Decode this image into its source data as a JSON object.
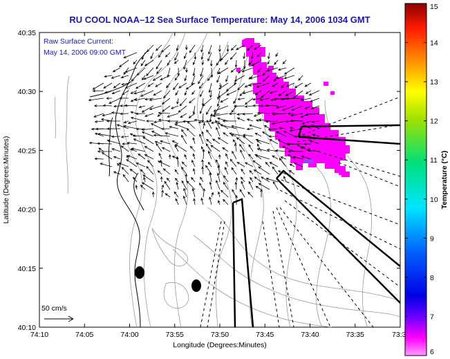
{
  "title": "RU COOL  NOAA–12  Sea Surface Temperature:  May 14, 2006 1034 GMT",
  "inset": {
    "line1": "Raw Surface Current:",
    "line2": "May 14, 2006 09:00 GMT"
  },
  "scale": {
    "label": "50 cm/s"
  },
  "axes": {
    "xlabel": "Longitude (Degrees:Minutes)",
    "ylabel": "Latitude (Degrees:Minutes)",
    "xticks": [
      "74:10",
      "74:05",
      "74:00",
      "73:55",
      "73:50",
      "73:45",
      "73:40",
      "73:35",
      "73:3"
    ],
    "yticks": [
      "40:35",
      "40:30",
      "40:25",
      "40:20",
      "40:15",
      "40:10"
    ]
  },
  "colorbar": {
    "label": "Temperature (°C)",
    "ticks": [
      "15",
      "14",
      "13",
      "12",
      "11",
      "10",
      "9",
      "8",
      "7",
      "6"
    ],
    "min": 6,
    "max": 15
  },
  "colors": {
    "title": "#1a1aa6",
    "sst_patch": "#ff00ff",
    "contour": "#9a9a9a",
    "arrow": "#000000"
  }
}
